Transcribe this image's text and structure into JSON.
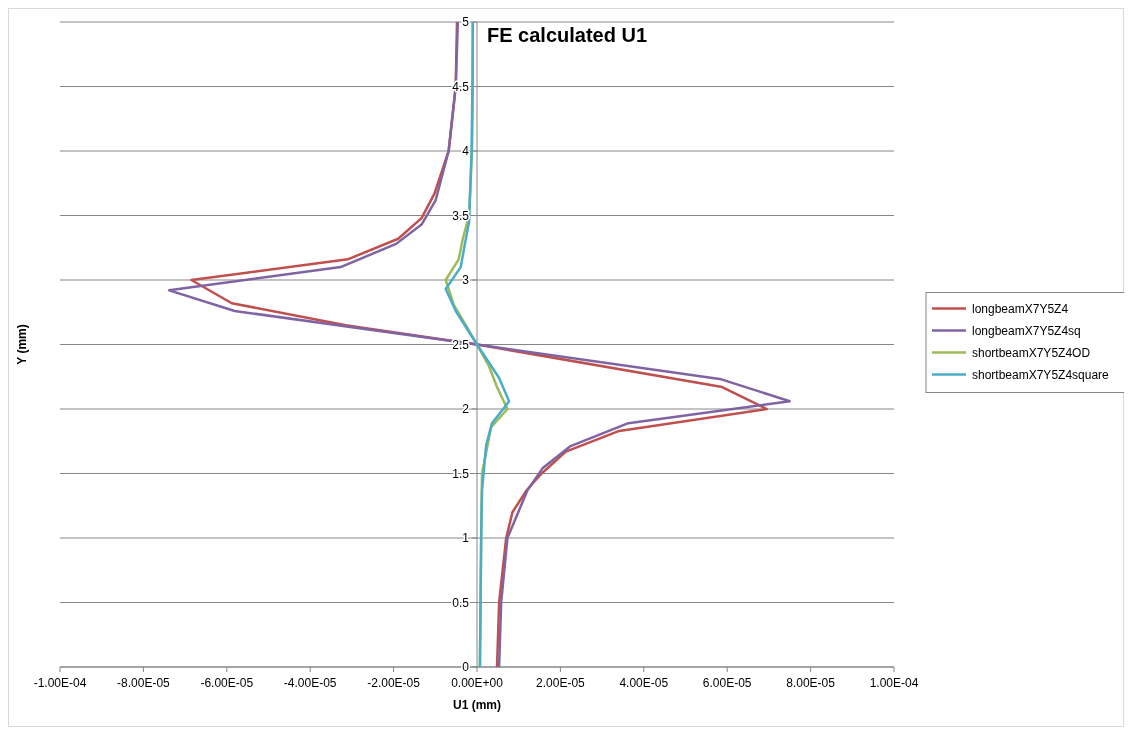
{
  "chart_data": {
    "type": "line",
    "title": "FE calculated U1",
    "xlabel": "U1 (mm)",
    "ylabel": "Y (mm)",
    "xlim": [
      -0.0001,
      0.0001
    ],
    "xticks": [
      {
        "value": -0.0001,
        "label": "-1.00E-04"
      },
      {
        "value": -8e-05,
        "label": "-8.00E-05"
      },
      {
        "value": -6e-05,
        "label": "-6.00E-05"
      },
      {
        "value": -4e-05,
        "label": "-4.00E-05"
      },
      {
        "value": -2e-05,
        "label": "-2.00E-05"
      },
      {
        "value": 0,
        "label": "0.00E+00"
      },
      {
        "value": 2e-05,
        "label": "2.00E-05"
      },
      {
        "value": 4e-05,
        "label": "4.00E-05"
      },
      {
        "value": 6e-05,
        "label": "6.00E-05"
      },
      {
        "value": 8e-05,
        "label": "8.00E-05"
      },
      {
        "value": 0.0001,
        "label": "1.00E-04"
      }
    ],
    "ylim": [
      0,
      5
    ],
    "yticks": [
      0,
      0.5,
      1,
      1.5,
      2,
      2.5,
      3,
      3.5,
      4,
      4.5,
      5
    ],
    "grid": "y",
    "legend": "right",
    "marker": "none",
    "line_style": "solid",
    "series": [
      {
        "name": "longbeamX7Y5Z4",
        "color": "#c0504d",
        "x": [
          4.8e-06,
          5.3e-06,
          7e-06,
          8.5e-06,
          1.19e-05,
          1.55e-05,
          2.13e-05,
          3.41e-05,
          6.95e-05,
          5.88e-05,
          0,
          -3.15e-05,
          -5.88e-05,
          -6.85e-05,
          -3.1e-05,
          -1.89e-05,
          -1.33e-05,
          -1.02e-05,
          -6.8e-06,
          -5.1e-06,
          -4.8e-06
        ],
        "values": [
          0,
          0.5,
          1,
          1.2,
          1.37,
          1.5,
          1.67,
          1.83,
          2,
          2.17,
          2.5,
          2.65,
          2.82,
          3,
          3.16,
          3.32,
          3.48,
          3.67,
          4,
          4.5,
          5
        ]
      },
      {
        "name": "longbeamX7Y5Z4sq",
        "color": "#8064a2",
        "x": [
          5.3e-06,
          5.8e-06,
          7.3e-06,
          1.21e-05,
          1.57e-05,
          2.23e-05,
          3.63e-05,
          7.5e-05,
          5.86e-05,
          0,
          -5.81e-05,
          -7.38e-05,
          -3.27e-05,
          -1.94e-05,
          -1.33e-05,
          -9.9e-06,
          -6.8e-06,
          -5.1e-06,
          -4.6e-06
        ],
        "values": [
          0,
          0.5,
          1,
          1.37,
          1.54,
          1.71,
          1.89,
          2.06,
          2.23,
          2.5,
          2.76,
          2.92,
          3.1,
          3.28,
          3.43,
          3.62,
          4,
          4.5,
          5
        ]
      },
      {
        "name": "shortbeamX7Y5Z4OD",
        "color": "#9bbb59",
        "x": [
          7e-07,
          1e-06,
          1.2e-06,
          3.4e-06,
          7.3e-06,
          4.8e-06,
          2.9e-06,
          0,
          -5.6e-06,
          -7.5e-06,
          -4.4e-06,
          -3.4e-06,
          -1.9e-06,
          -1.2e-06,
          -1e-06,
          -1e-06
        ],
        "values": [
          0,
          1,
          1.5,
          1.86,
          2,
          2.17,
          2.33,
          2.5,
          2.81,
          3,
          3.16,
          3.32,
          3.5,
          4,
          4.5,
          5
        ]
      },
      {
        "name": "shortbeamX7Y5Z4square",
        "color": "#4bacc6",
        "x": [
          7e-07,
          1e-06,
          1.2e-06,
          2.2e-06,
          3.6e-06,
          7.7e-06,
          5.3e-06,
          0,
          -5.1e-06,
          -7.5e-06,
          -3.9e-06,
          -2.9e-06,
          -1.9e-06,
          -1.3e-06,
          -1.1e-06,
          -1e-06
        ],
        "values": [
          0,
          1,
          1.37,
          1.72,
          1.89,
          2.06,
          2.24,
          2.5,
          2.76,
          2.93,
          3.1,
          3.28,
          3.45,
          4,
          4.5,
          5
        ]
      }
    ]
  }
}
